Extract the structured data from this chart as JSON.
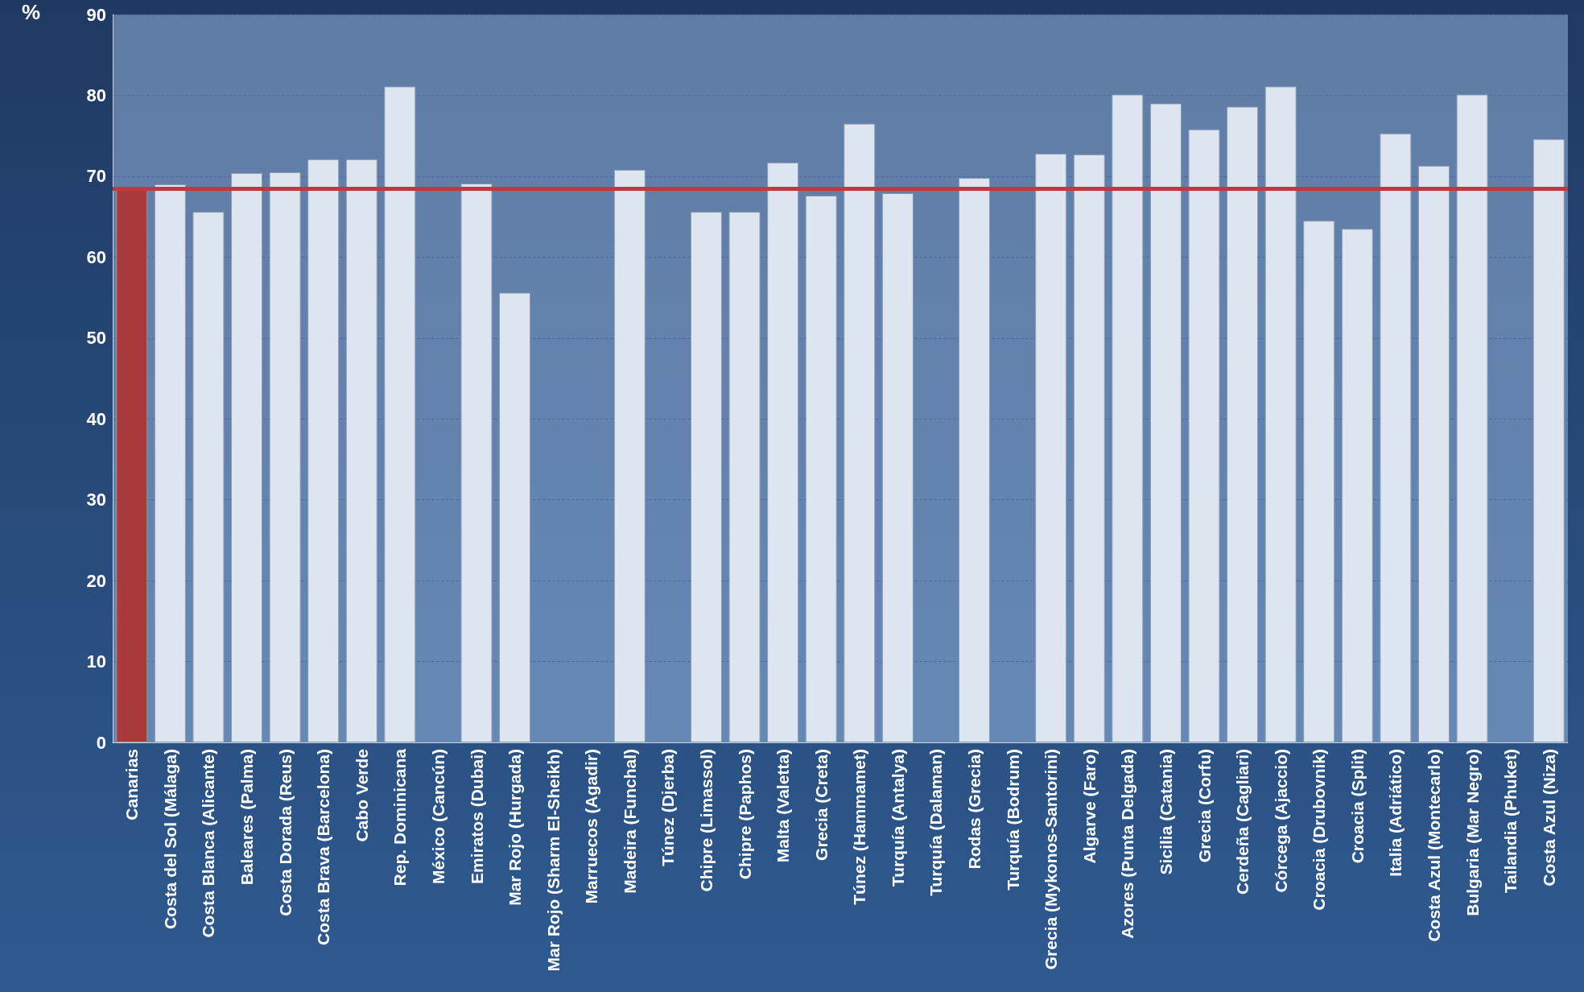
{
  "chart_data": {
    "type": "bar",
    "ylabel": "%",
    "categories": [
      "Canarias",
      "Costa del Sol (Málaga)",
      "Costa Blanca (Alicante)",
      "Baleares (Palma)",
      "Costa Dorada (Reus)",
      "Costa Brava (Barcelona)",
      "Cabo Verde",
      "Rep. Dominicana",
      "México (Cancún)",
      "Emiratos (Dubai)",
      "Mar Rojo (Hurgada)",
      "Mar Rojo (Sharm El-Sheikh)",
      "Marruecos (Agadir)",
      "Madeira (Funchal)",
      "Túnez (Djerba)",
      "Chipre (Limassol)",
      "Chipre (Paphos)",
      "Malta (Valetta)",
      "Grecia (Creta)",
      "Túnez (Hammamet)",
      "Turquía (Antalya)",
      "Turquía (Dalaman)",
      "Rodas (Grecia)",
      "Turquía (Bodrum)",
      "Grecia (Mykonos-Santorini)",
      "Algarve (Faro)",
      "Azores (Punta Delgada)",
      "Sicilia (Catania)",
      "Grecia (Corfu)",
      "Cerdeña (Cagliari)",
      "Córcega (Ajaccio)",
      "Croacia (Drubovnik)",
      "Croacia (Split)",
      "Italia (Adriático)",
      "Costa Azul (Montecarlo)",
      "Bulgaria (Mar Negro)",
      "Tailandia (Phuket)",
      "Costa Azul (Niza)"
    ],
    "values": [
      68.5,
      69,
      65.6,
      70.4,
      70.5,
      72.1,
      72.1,
      81.1,
      null,
      69.1,
      55.6,
      null,
      null,
      70.8,
      null,
      65.6,
      65.6,
      71.7,
      67.6,
      76.5,
      67.9,
      null,
      69.8,
      null,
      72.8,
      72.7,
      80.1,
      79,
      75.8,
      78.6,
      81.1,
      64.5,
      63.5,
      75.3,
      71.3,
      80.1,
      null,
      74.6
    ],
    "colors": [
      "#a83a3a",
      "#dde6f0",
      "#dde6f0",
      "#dde6f0",
      "#dde6f0",
      "#dde6f0",
      "#dde6f0",
      "#dde6f0",
      "#dde6f0",
      "#dde6f0",
      "#dde6f0",
      "#dde6f0",
      "#dde6f0",
      "#dde6f0",
      "#dde6f0",
      "#dde6f0",
      "#dde6f0",
      "#dde6f0",
      "#dde6f0",
      "#dde6f0",
      "#dde6f0",
      "#dde6f0",
      "#dde6f0",
      "#dde6f0",
      "#dde6f0",
      "#dde6f0",
      "#dde6f0",
      "#dde6f0",
      "#dde6f0",
      "#dde6f0",
      "#dde6f0",
      "#dde6f0",
      "#dde6f0",
      "#dde6f0",
      "#dde6f0",
      "#dde6f0",
      "#dde6f0",
      "#dde6f0"
    ],
    "ylim": [
      0,
      90
    ],
    "yticks": [
      0,
      10,
      20,
      30,
      40,
      50,
      60,
      70,
      80,
      90
    ],
    "grid": "y",
    "ref_lines": [
      {
        "axis": "y",
        "value": 68.5,
        "color": "#c0393b"
      }
    ]
  }
}
